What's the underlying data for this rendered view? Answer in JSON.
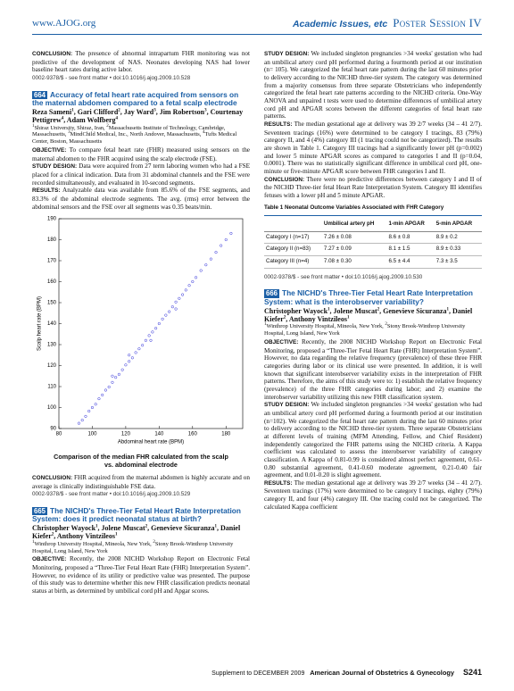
{
  "header": {
    "site": "www.AJOG.org",
    "section": "Academic Issues, etc",
    "session": "Poster Session IV"
  },
  "left": {
    "top_conclusion": {
      "label": "CONCLUSION:",
      "text": "The presence of abnormal intrapartum FHR monitoring was not predictive of the development of NAS. Neonates developing NAS had lower baseline heart rates during active labor."
    },
    "top_citation": "0002-9378/$ - see front matter  •  doi:10.1016/j.ajog.2009.10.528",
    "abstract_664": {
      "number": "664",
      "title": "Accuracy of fetal heart rate acquired from sensors on the maternal abdomen compared to a fetal scalp electrode",
      "authors": [
        {
          "name": "Reza Sameni",
          "aff": "1"
        },
        {
          "name": "Gari Clifford",
          "aff": "2"
        },
        {
          "name": "Jay Ward",
          "aff": "3"
        },
        {
          "name": "Jim Robertson",
          "aff": "3"
        },
        {
          "name": "Courtenay Pettigrew",
          "aff": "4"
        },
        {
          "name": "Adam Wolfberg",
          "aff": "4"
        }
      ],
      "affiliations": [
        {
          "n": "1",
          "text": "Shiraz University, Shiraz, Iran,"
        },
        {
          "n": "2",
          "text": "Massachusetts Institute of Technology, Cambridge, Massachusetts,"
        },
        {
          "n": "3",
          "text": "MindChild Medical, Inc., North Andover, Massachusetts,"
        },
        {
          "n": "4",
          "text": "Tufts Medical Center, Boston, Massachusetts"
        }
      ],
      "sections": [
        {
          "label": "OBJECTIVE:",
          "text": "To compare fetal heart rate (FHR) measured using sensors on the maternal abdomen to the FHR acquired using the scalp electrode (FSE)."
        },
        {
          "label": "STUDY DESIGN:",
          "text": "Data were acquired from 27 term laboring women who had a FSE placed for a clinical indication. Data from 31 abdominal channels and the FSE were recorded simultaneously, and evaluated in 10-second segments."
        },
        {
          "label": "RESULTS:",
          "text": "Analyzable data was available from 85.6% of the FSE segments, and 83.3% of the abdominal electrode segments. The avg. (rms) error between the abdominal sensors and the FSE over all segments was 0.35 beats/min."
        }
      ],
      "caption": "Comparison of the median FHR calculated from the scalp vs. abdominal electrode",
      "conclusion": {
        "label": "CONCLUSION:",
        "text": "FHR acquired from the maternal abdomen is highly accurate and on average is clinically indistinguishable FSE data."
      },
      "citation": "0002-9378/$ - see front matter  •  doi:10.1016/j.ajog.2009.10.529"
    },
    "abstract_665": {
      "number": "665",
      "title": "The NICHD's Three-Tier Fetal Heart Rate Interpretation System: does it predict neonatal status at birth?",
      "authors": [
        {
          "name": "Christopher Wayock",
          "aff": "1"
        },
        {
          "name": "Jolene Muscat",
          "aff": "2"
        },
        {
          "name": "Genevieve Sicuranza",
          "aff": "1"
        },
        {
          "name": "Daniel Kiefer",
          "aff": "2"
        },
        {
          "name": "Anthony Vintzileos",
          "aff": "1"
        }
      ],
      "affiliations": [
        {
          "n": "1",
          "text": "Winthrop University Hospital, Mineola, New York,"
        },
        {
          "n": "2",
          "text": "Stony Brook-Winthrop University Hospital, Long Island, New York"
        }
      ],
      "sections": [
        {
          "label": "OBJECTIVE:",
          "text": "Recently, the 2008 NICHD Workshop Report on Electronic Fetal Monitoring, proposed a “Three-Tier Fetal Heart Rate (FHR) Interpretation System”. However, no evidence of its utility or predictive value was presented. The purpose of this study was to determine whether this new FHR classification predicts neonatal status at birth, as determined by umbilical cord pH and Apgar scores."
        }
      ]
    }
  },
  "right": {
    "sections": [
      {
        "label": "STUDY DESIGN:",
        "text": "We included singleton pregnancies >34 weeks' gestation who had an umbilical artery cord pH performed during a fourmonth period at our institution (n= 105). We categorized the fetal heart rate pattern during the last 60 minutes prior to delivery according to the NICHD three-tier system. The category was determined from a majority consensus from three separate Obstetricians who independently categorized the fetal heart rate patterns according to the NICHD criteria. One-Way ANOVA and unpaired t tests were used to determine differences of umbilical artery cord pH and APGAR scores between the different categories of fetal heart rate patterns."
      },
      {
        "label": "RESULTS:",
        "text": "The median gestational age at delivery was 39 2/7 weeks (34 – 41 2/7). Seventeen tracings (16%) were determined to be category I tracings, 83 (79%) category II, and 4 (4%) category III (1 tracing could not be categorized). The results are shown in Table 1. Category III tracings had a significantly lower pH (p=0.002) and lower 5 minute APGAR scores as compared to categories I and II (p=0.04, 0.0001). There was no statistically significant difference in umbilical cord pH, one-minute or five-minute APGAR score between FHR categories I and II."
      },
      {
        "label": "CONCLUSION:",
        "text": "There were no predictive differences between category I and II of the NICHD Three-tier fetal Heart Rate Interpretation System. Category III identifies fetuses with a lower pH and 5 minute APGAR."
      }
    ],
    "table": {
      "title": "Table 1 Neonatal Outcome Variables Associated with FHR Category",
      "header": [
        "Umbilical artery pH",
        "1-min APGAR",
        "5-min APGAR"
      ],
      "rows": [
        [
          "Category I (n=17)",
          "7.26 ± 0.08",
          "8.6 ± 0.8",
          "8.9 ± 0.2"
        ],
        [
          "Category II (n=83)",
          "7.27 ± 0.09",
          "8.1 ± 1.5",
          "8.9 ± 0.33"
        ],
        [
          "Category III (n=4)",
          "7.08 ± 0.30",
          "6.5 ± 4.4",
          "7.3 ± 3.5"
        ]
      ]
    },
    "citation": "0002-9378/$ - see front matter  •  doi:10.1016/j.ajog.2009.10.530",
    "abstract_666": {
      "number": "666",
      "title": "The NICHD's Three-Tier Fetal Heart Rate Interpretation System: what is the interobserver variability?",
      "authors": [
        {
          "name": "Christopher Wayock",
          "aff": "1"
        },
        {
          "name": "Jolene Muscat",
          "aff": "2"
        },
        {
          "name": "Genevieve Sicuranza",
          "aff": "1"
        },
        {
          "name": "Daniel Kiefer",
          "aff": "2"
        },
        {
          "name": "Anthony Vintzileos",
          "aff": "1"
        }
      ],
      "affiliations": [
        {
          "n": "1",
          "text": "Winthrop University Hospital, Mineola, New York,"
        },
        {
          "n": "2",
          "text": "Stony Brook-Winthrop University Hospital, Long Island, New York"
        }
      ],
      "sections": [
        {
          "label": "OBJECTIVE:",
          "text": "Recently, the 2008 NICHD Workshop Report on Electronic Fetal Monitoring, proposed a “Three-Tier Fetal Heart Rate (FHR) Interpretation System”. However, no data regarding the relative frequency (prevalence) of these three FHR categories during labor or its clinical use were presented. In addition, it is well known that significant interobserver variability exists in the interpretation of FHR patterns. Therefore, the aims of this study were to: 1) establish the relative frequency (prevalence) of the three FHR categories during labor; and 2) examine the interobserver variability utilizing this new FHR classification system."
        },
        {
          "label": "STUDY DESIGN:",
          "text": "We included singleton pregnancies >34 weeks' gestation who had an umbilical artery cord pH performed during a fourmonth period at our institution (n=102). We categorized the fetal heart rate pattern during the last 60 minutes prior to delivery according to the NICHD three-tier system. Three separate Obstetricians at different levels of training (MFM Attending, Fellow, and Chief Resident) independently categorized the FHR patterns using the NICHD criteria. A Kappa coefficient was calculated to assess the interobserver variability of category classification. A Kappa of 0.81-0.99 is considered almost perfect agreement, 0.61-0.80 substantial agreement, 0.41-0.60 moderate agreement, 0.21-0.40 fair agreement, and 0.01-0.20 is slight agreement."
        },
        {
          "label": "RESULTS:",
          "text": "The median gestational age at delivery was 39 2/7 weeks (34 – 41 2/7). Seventeen tracings (17%) were determined to be category I tracings, eighty (79%) category II, and four (4%) category III. One tracing could not be categorized. The calculated Kappa coefficient"
        }
      ]
    }
  },
  "chart_data": {
    "type": "scatter",
    "xlabel": "Abdominal heart rate (BPM)",
    "ylabel": "Scalp heart rate (BPM)",
    "color": "#2a2ad8",
    "x": [
      92,
      94,
      96,
      98,
      100,
      102,
      104,
      106,
      108,
      110,
      112,
      114,
      116,
      118,
      120,
      122,
      124,
      126,
      128,
      130,
      132,
      134,
      136,
      138,
      140,
      142,
      144,
      146,
      148,
      150,
      152,
      154,
      156,
      158,
      160,
      162,
      165,
      168,
      171,
      174,
      177,
      180,
      183,
      122,
      135,
      150,
      112
    ],
    "y": [
      92.5,
      94,
      95.8,
      98.3,
      100,
      101.6,
      104.2,
      106,
      108.3,
      109.8,
      112,
      114.4,
      115.8,
      118,
      120.3,
      122,
      123.7,
      126.2,
      128,
      129.7,
      132,
      134.3,
      136,
      137.8,
      140,
      142.2,
      144,
      145.7,
      148,
      150.3,
      152,
      153.8,
      156,
      158.2,
      160,
      162,
      165.3,
      168,
      170.8,
      174,
      177.2,
      180,
      183,
      125,
      132,
      147,
      115
    ],
    "xlim": [
      80,
      190
    ],
    "xticks": [
      80,
      100,
      120,
      140,
      160,
      180
    ],
    "ylim": [
      90,
      190
    ],
    "yticks": [
      90,
      100,
      110,
      120,
      130,
      140,
      150,
      160,
      170,
      180,
      190
    ]
  },
  "footer": {
    "supplement": "Supplement to DECEMBER 2009",
    "journal": "American Journal of Obstetrics & Gynecology",
    "page": "S241"
  }
}
